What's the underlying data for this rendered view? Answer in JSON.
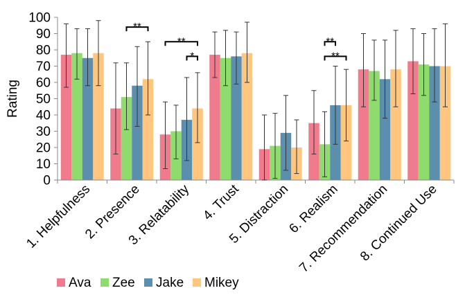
{
  "chart_data": {
    "type": "bar",
    "ylabel": "Rating",
    "ylim": [
      0,
      100
    ],
    "yticks": [
      0,
      10,
      20,
      30,
      40,
      50,
      60,
      70,
      80,
      90,
      100
    ],
    "categories": [
      "1. Helpfulness",
      "2. Presence",
      "3. Relatability",
      "4. Trust",
      "5. Distraction",
      "6. Realism",
      "7. Recommendation",
      "8. Continued Use"
    ],
    "series": [
      {
        "name": "Ava",
        "color": "#f07b8c",
        "values": [
          77,
          44,
          28,
          77,
          19,
          35,
          68,
          73
        ],
        "error_low": [
          57,
          16,
          7,
          63,
          0,
          16,
          45,
          53
        ],
        "error_high": [
          96,
          72,
          48,
          91,
          40,
          55,
          90,
          93
        ]
      },
      {
        "name": "Zee",
        "color": "#8fdb6d",
        "values": [
          78,
          51,
          30,
          75,
          21,
          22,
          67,
          71
        ],
        "error_low": [
          62,
          31,
          13,
          58,
          1,
          2,
          49,
          52
        ],
        "error_high": [
          93,
          72,
          46,
          92,
          41,
          42,
          86,
          90
        ]
      },
      {
        "name": "Jake",
        "color": "#5b8fad",
        "values": [
          75,
          58,
          37,
          76,
          29,
          46,
          62,
          70
        ],
        "error_low": [
          58,
          33,
          12,
          59,
          6,
          22,
          38,
          48
        ],
        "error_high": [
          93,
          82,
          63,
          91,
          52,
          70,
          86,
          93
        ]
      },
      {
        "name": "Mikey",
        "color": "#ffc680",
        "values": [
          78,
          62,
          44,
          78,
          20,
          46,
          68,
          70
        ],
        "error_low": [
          58,
          40,
          23,
          60,
          4,
          24,
          45,
          45
        ],
        "error_high": [
          98,
          85,
          66,
          97,
          37,
          68,
          92,
          96
        ]
      }
    ],
    "annotations": [
      {
        "category": 1,
        "from": 1,
        "to": 3,
        "label": "**",
        "y": 94
      },
      {
        "category": 2,
        "from": 0,
        "to": 3,
        "label": "**",
        "y": 85
      },
      {
        "category": 2,
        "from": 2,
        "to": 3,
        "label": "*",
        "y": 76
      },
      {
        "category": 5,
        "from": 1,
        "to": 2,
        "label": "**",
        "y": 85
      },
      {
        "category": 5,
        "from": 1,
        "to": 3,
        "label": "**",
        "y": 76
      }
    ],
    "legend_position": "bottom",
    "grid": false
  }
}
